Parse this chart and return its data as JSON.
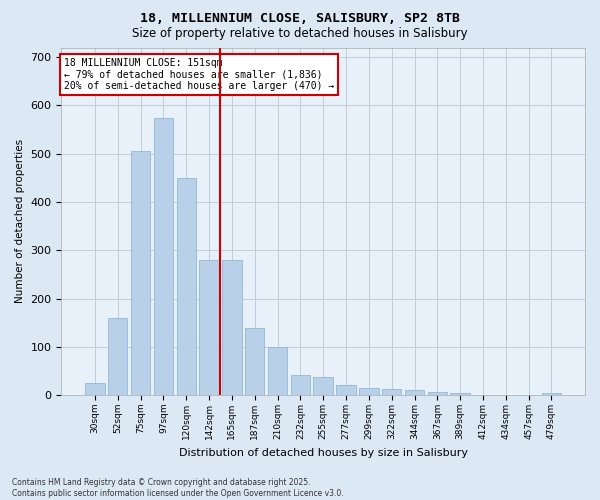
{
  "title_line1": "18, MILLENNIUM CLOSE, SALISBURY, SP2 8TB",
  "title_line2": "Size of property relative to detached houses in Salisbury",
  "xlabel": "Distribution of detached houses by size in Salisbury",
  "ylabel": "Number of detached properties",
  "bins": [
    "30sqm",
    "52sqm",
    "75sqm",
    "97sqm",
    "120sqm",
    "142sqm",
    "165sqm",
    "187sqm",
    "210sqm",
    "232sqm",
    "255sqm",
    "277sqm",
    "299sqm",
    "322sqm",
    "344sqm",
    "367sqm",
    "389sqm",
    "412sqm",
    "434sqm",
    "457sqm",
    "479sqm"
  ],
  "values": [
    25,
    160,
    505,
    575,
    450,
    280,
    280,
    140,
    100,
    42,
    38,
    20,
    15,
    13,
    10,
    7,
    5,
    0,
    0,
    0,
    4
  ],
  "bar_color": "#b8d0e8",
  "bar_edge_color": "#90b8d8",
  "vline_pos": 5.5,
  "vline_color": "#cc0000",
  "annotation_text": "18 MILLENNIUM CLOSE: 151sqm\n← 79% of detached houses are smaller (1,836)\n20% of semi-detached houses are larger (470) →",
  "annotation_box_color": "#ffffff",
  "annotation_box_edge": "#cc0000",
  "ylim": [
    0,
    720
  ],
  "yticks": [
    0,
    100,
    200,
    300,
    400,
    500,
    600,
    700
  ],
  "footer_text": "Contains HM Land Registry data © Crown copyright and database right 2025.\nContains public sector information licensed under the Open Government Licence v3.0.",
  "bg_color": "#dde8f5",
  "plot_bg_color": "#e8f0fa",
  "grid_color": "#c0ccdc"
}
